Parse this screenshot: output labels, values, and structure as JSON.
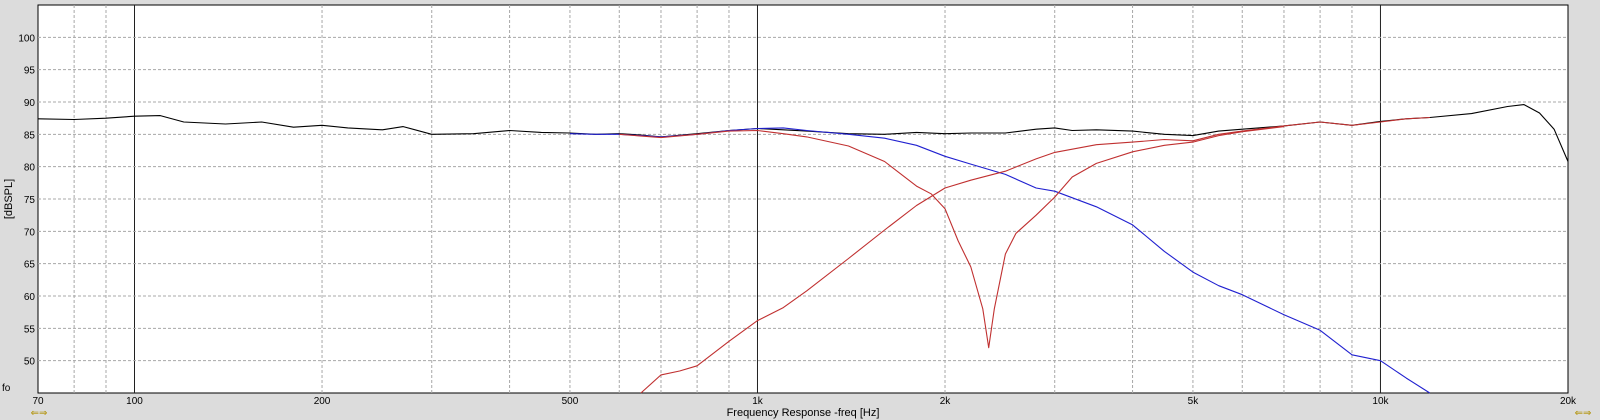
{
  "chart_data": {
    "type": "line",
    "title": "",
    "xlabel": "Frequency Response -freq [Hz]",
    "ylabel": "[dBSPL]",
    "x_scale": "log",
    "xlim": [
      70,
      20000
    ],
    "ylim": [
      45,
      105
    ],
    "x_ticks": [
      {
        "value": 70,
        "label": "70"
      },
      {
        "value": 100,
        "label": "100"
      },
      {
        "value": 200,
        "label": "200"
      },
      {
        "value": 500,
        "label": "500"
      },
      {
        "value": 1000,
        "label": "1k"
      },
      {
        "value": 2000,
        "label": "2k"
      },
      {
        "value": 5000,
        "label": "5k"
      },
      {
        "value": 10000,
        "label": "10k"
      },
      {
        "value": 20000,
        "label": "20k"
      }
    ],
    "y_ticks": [
      {
        "value": 45,
        "label": "fo"
      },
      {
        "value": 50,
        "label": "50"
      },
      {
        "value": 55,
        "label": "55"
      },
      {
        "value": 60,
        "label": "60"
      },
      {
        "value": 65,
        "label": "65"
      },
      {
        "value": 70,
        "label": "70"
      },
      {
        "value": 75,
        "label": "75"
      },
      {
        "value": 80,
        "label": "80"
      },
      {
        "value": 85,
        "label": "85"
      },
      {
        "value": 90,
        "label": "90"
      },
      {
        "value": 95,
        "label": "95"
      },
      {
        "value": 100,
        "label": "100"
      }
    ],
    "grid": true,
    "series": [
      {
        "color": "#000000",
        "points": [
          [
            70,
            87.4
          ],
          [
            80,
            87.3
          ],
          [
            90,
            87.5
          ],
          [
            100,
            87.8
          ],
          [
            110,
            87.9
          ],
          [
            120,
            86.9
          ],
          [
            140,
            86.6
          ],
          [
            160,
            86.9
          ],
          [
            180,
            86.1
          ],
          [
            200,
            86.4
          ],
          [
            220,
            86.0
          ],
          [
            250,
            85.7
          ],
          [
            270,
            86.2
          ],
          [
            300,
            85.0
          ],
          [
            350,
            85.1
          ],
          [
            400,
            85.6
          ],
          [
            450,
            85.3
          ],
          [
            500,
            85.2
          ],
          [
            550,
            85.0
          ],
          [
            600,
            85.1
          ],
          [
            650,
            84.9
          ],
          [
            700,
            84.6
          ],
          [
            800,
            85.1
          ],
          [
            900,
            85.6
          ],
          [
            1000,
            85.9
          ],
          [
            1100,
            85.7
          ],
          [
            1200,
            85.5
          ],
          [
            1400,
            85.1
          ],
          [
            1600,
            85.0
          ],
          [
            1800,
            85.3
          ],
          [
            2000,
            85.1
          ],
          [
            2200,
            85.2
          ],
          [
            2500,
            85.2
          ],
          [
            2800,
            85.8
          ],
          [
            3000,
            86.0
          ],
          [
            3200,
            85.6
          ],
          [
            3500,
            85.7
          ],
          [
            4000,
            85.5
          ],
          [
            4500,
            85.0
          ],
          [
            5000,
            84.8
          ],
          [
            5500,
            85.5
          ],
          [
            6000,
            85.8
          ],
          [
            7000,
            86.3
          ],
          [
            8000,
            86.9
          ],
          [
            9000,
            86.4
          ],
          [
            10000,
            87.0
          ],
          [
            11000,
            87.4
          ],
          [
            12000,
            87.6
          ],
          [
            14000,
            88.2
          ],
          [
            16000,
            89.3
          ],
          [
            17000,
            89.6
          ],
          [
            18000,
            88.3
          ],
          [
            19000,
            85.8
          ],
          [
            20000,
            80.8
          ]
        ]
      },
      {
        "color": "#2020d0",
        "points": [
          [
            500,
            85.1
          ],
          [
            550,
            85.0
          ],
          [
            600,
            85.0
          ],
          [
            650,
            84.8
          ],
          [
            700,
            84.6
          ],
          [
            800,
            85.0
          ],
          [
            900,
            85.6
          ],
          [
            1000,
            85.9
          ],
          [
            1100,
            86.0
          ],
          [
            1200,
            85.6
          ],
          [
            1400,
            85.0
          ],
          [
            1600,
            84.4
          ],
          [
            1800,
            83.3
          ],
          [
            2000,
            81.6
          ],
          [
            2200,
            80.4
          ],
          [
            2500,
            78.8
          ],
          [
            2800,
            76.7
          ],
          [
            3000,
            76.2
          ],
          [
            3500,
            73.8
          ],
          [
            4000,
            71.0
          ],
          [
            4500,
            66.9
          ],
          [
            5000,
            63.7
          ],
          [
            5500,
            61.6
          ],
          [
            6000,
            60.2
          ],
          [
            7000,
            57.1
          ],
          [
            8000,
            54.7
          ],
          [
            9000,
            50.9
          ],
          [
            10000,
            50.0
          ],
          [
            11000,
            47.3
          ],
          [
            12000,
            44.5
          ]
        ]
      },
      {
        "color": "#c03030",
        "points": [
          [
            650,
            45.0
          ],
          [
            700,
            47.8
          ],
          [
            750,
            48.4
          ],
          [
            800,
            49.2
          ],
          [
            900,
            53.0
          ],
          [
            1000,
            56.2
          ],
          [
            1100,
            58.2
          ],
          [
            1200,
            60.8
          ],
          [
            1400,
            65.8
          ],
          [
            1600,
            70.2
          ],
          [
            1800,
            74.0
          ],
          [
            2000,
            76.7
          ],
          [
            2200,
            77.9
          ],
          [
            2500,
            79.3
          ],
          [
            2800,
            81.2
          ],
          [
            3000,
            82.2
          ],
          [
            3500,
            83.4
          ],
          [
            4000,
            83.8
          ],
          [
            4500,
            84.2
          ],
          [
            5000,
            84.0
          ],
          [
            5500,
            85.0
          ],
          [
            6000,
            85.5
          ],
          [
            7000,
            86.3
          ],
          [
            8000,
            86.9
          ],
          [
            9000,
            86.4
          ],
          [
            10000,
            86.9
          ],
          [
            11000,
            87.4
          ],
          [
            12000,
            87.6
          ]
        ]
      },
      {
        "color": "#c03030",
        "points": [
          [
            600,
            85.0
          ],
          [
            700,
            84.5
          ],
          [
            800,
            85.0
          ],
          [
            900,
            85.5
          ],
          [
            1000,
            85.6
          ],
          [
            1100,
            85.1
          ],
          [
            1200,
            84.6
          ],
          [
            1400,
            83.2
          ],
          [
            1600,
            80.8
          ],
          [
            1800,
            77.0
          ],
          [
            1900,
            75.8
          ],
          [
            2000,
            73.5
          ],
          [
            2100,
            68.5
          ],
          [
            2200,
            64.5
          ],
          [
            2300,
            58.0
          ],
          [
            2350,
            52.0
          ],
          [
            2400,
            58.0
          ],
          [
            2500,
            66.5
          ],
          [
            2600,
            69.7
          ],
          [
            2800,
            72.5
          ],
          [
            3000,
            75.3
          ],
          [
            3200,
            78.4
          ],
          [
            3500,
            80.5
          ],
          [
            4000,
            82.3
          ],
          [
            4500,
            83.3
          ],
          [
            5000,
            83.8
          ],
          [
            5500,
            84.8
          ],
          [
            6000,
            85.4
          ],
          [
            7000,
            86.2
          ]
        ]
      }
    ]
  }
}
